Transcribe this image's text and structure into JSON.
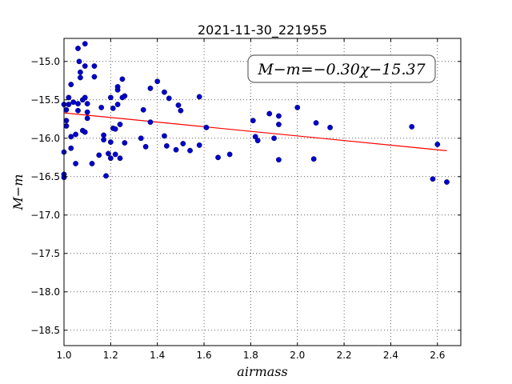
{
  "chart_data": {
    "type": "scatter",
    "title": "2021-11-30_221955",
    "xlabel": "airmass",
    "ylabel": "M−m",
    "xlim": [
      1.0,
      2.7
    ],
    "ylim": [
      -18.7,
      -14.7
    ],
    "y_inverted": true,
    "grid": true,
    "xticks": [
      1.0,
      1.2,
      1.4,
      1.6,
      1.8,
      2.0,
      2.2,
      2.4,
      2.6
    ],
    "xtick_labels": [
      "1.0",
      "1.2",
      "1.4",
      "1.6",
      "1.8",
      "2.0",
      "2.2",
      "2.4",
      "2.6"
    ],
    "yticks": [
      -15.0,
      -15.5,
      -16.0,
      -16.5,
      -17.0,
      -17.5,
      -18.0,
      -18.5
    ],
    "ytick_labels": [
      "−15.0",
      "−15.5",
      "−16.0",
      "−16.5",
      "−17.0",
      "−17.5",
      "−18.0",
      "−18.5"
    ],
    "annotation": "M−m=−0.30χ−15.37",
    "annotation_position": "top-right",
    "fit_line": {
      "slope": -0.3,
      "intercept": -15.37,
      "x_range": [
        1.0,
        2.64
      ],
      "color": "#ff0000"
    },
    "point_color": "#0000cc",
    "points": [
      [
        1.0,
        -16.18
      ],
      [
        1.0,
        -16.47
      ],
      [
        1.0,
        -16.51
      ],
      [
        1.0,
        -15.56
      ],
      [
        1.01,
        -15.77
      ],
      [
        1.01,
        -15.84
      ],
      [
        1.01,
        -15.63
      ],
      [
        1.02,
        -15.47
      ],
      [
        1.02,
        -15.56
      ],
      [
        1.03,
        -15.98
      ],
      [
        1.03,
        -16.13
      ],
      [
        1.03,
        -15.3
      ],
      [
        1.04,
        -15.53
      ],
      [
        1.05,
        -15.95
      ],
      [
        1.05,
        -16.33
      ],
      [
        1.06,
        -15.64
      ],
      [
        1.06,
        -15.55
      ],
      [
        1.06,
        -14.83
      ],
      [
        1.065,
        -15.0
      ],
      [
        1.07,
        -15.14
      ],
      [
        1.07,
        -15.21
      ],
      [
        1.08,
        -15.9
      ],
      [
        1.08,
        -15.5
      ],
      [
        1.09,
        -15.06
      ],
      [
        1.09,
        -14.77
      ],
      [
        1.09,
        -15.92
      ],
      [
        1.09,
        -15.47
      ],
      [
        1.1,
        -15.66
      ],
      [
        1.1,
        -15.74
      ],
      [
        1.1,
        -15.55
      ],
      [
        1.12,
        -16.33
      ],
      [
        1.13,
        -15.06
      ],
      [
        1.13,
        -15.2
      ],
      [
        1.15,
        -16.22
      ],
      [
        1.16,
        -15.6
      ],
      [
        1.17,
        -15.96
      ],
      [
        1.17,
        -16.02
      ],
      [
        1.18,
        -16.49
      ],
      [
        1.19,
        -16.2
      ],
      [
        1.2,
        -16.05
      ],
      [
        1.2,
        -16.26
      ],
      [
        1.2,
        -15.47
      ],
      [
        1.21,
        -15.87
      ],
      [
        1.21,
        -15.61
      ],
      [
        1.22,
        -16.21
      ],
      [
        1.22,
        -15.88
      ],
      [
        1.23,
        -15.56
      ],
      [
        1.23,
        -15.37
      ],
      [
        1.23,
        -15.33
      ],
      [
        1.24,
        -16.26
      ],
      [
        1.24,
        -15.82
      ],
      [
        1.25,
        -15.23
      ],
      [
        1.25,
        -15.47
      ],
      [
        1.26,
        -16.06
      ],
      [
        1.26,
        -15.45
      ],
      [
        1.33,
        -16.0
      ],
      [
        1.34,
        -15.63
      ],
      [
        1.35,
        -16.11
      ],
      [
        1.37,
        -15.79
      ],
      [
        1.37,
        -15.35
      ],
      [
        1.4,
        -15.26
      ],
      [
        1.43,
        -15.97
      ],
      [
        1.44,
        -16.1
      ],
      [
        1.43,
        -15.4
      ],
      [
        1.45,
        -15.48
      ],
      [
        1.48,
        -16.15
      ],
      [
        1.49,
        -15.57
      ],
      [
        1.5,
        -15.64
      ],
      [
        1.51,
        -16.07
      ],
      [
        1.54,
        -16.16
      ],
      [
        1.58,
        -16.09
      ],
      [
        1.58,
        -15.46
      ],
      [
        1.61,
        -15.86
      ],
      [
        1.66,
        -16.25
      ],
      [
        1.71,
        -16.21
      ],
      [
        1.81,
        -15.77
      ],
      [
        1.82,
        -15.98
      ],
      [
        1.83,
        -16.03
      ],
      [
        1.88,
        -15.68
      ],
      [
        1.9,
        -16.0
      ],
      [
        1.92,
        -15.71
      ],
      [
        1.92,
        -15.82
      ],
      [
        1.92,
        -16.28
      ],
      [
        2.0,
        -15.6
      ],
      [
        2.07,
        -16.27
      ],
      [
        2.08,
        -15.8
      ],
      [
        2.14,
        -15.86
      ],
      [
        2.49,
        -15.85
      ],
      [
        2.58,
        -16.53
      ],
      [
        2.6,
        -16.08
      ],
      [
        2.64,
        -16.57
      ]
    ]
  }
}
